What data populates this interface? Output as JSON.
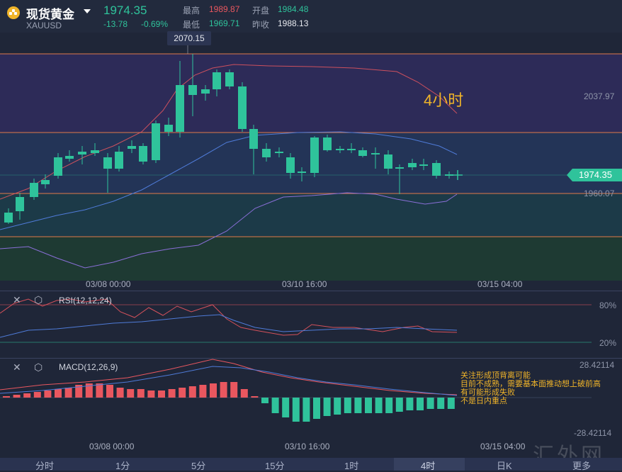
{
  "header": {
    "title": "现货黄金",
    "symbol": "XAUUSD",
    "last_price": "1974.35",
    "change": "-13.78",
    "change_pct": "-0.69%",
    "high_label": "最高",
    "high_value": "1989.87",
    "low_label": "最低",
    "low_value": "1969.71",
    "open_label": "开盘",
    "open_value": "1984.48",
    "prev_close_label": "昨收",
    "prev_close_value": "1988.13"
  },
  "main_chart": {
    "peak_tag": "2070.15",
    "timeframe_note": "4小时",
    "price_labels": [
      "2037.97",
      "1974.35",
      "1960.07"
    ],
    "time_labels": [
      "03/08 00:00",
      "03/10 16:00",
      "03/15 04:00"
    ]
  },
  "rsi": {
    "label": "RSI(12,12,24)",
    "levels": [
      "80%",
      "20%"
    ]
  },
  "macd": {
    "label": "MACD(12,26,9)",
    "levels": [
      "28.42114",
      "-28.42114"
    ],
    "annotation": [
      "关注形成顶背离可能",
      "目前不成熟，需要基本面推动想上破前高",
      "有可能形成失败",
      "不是日内重点"
    ],
    "time_labels": [
      "03/08 00:00",
      "03/10 16:00",
      "03/15 04:00"
    ]
  },
  "tabs": [
    "分时",
    "1分",
    "5分",
    "15分",
    "1时",
    "4时",
    "日K",
    "更多"
  ],
  "active_tab": "4时",
  "watermark": "汇外网",
  "colors": {
    "up": "#e9575f",
    "down": "#2fc39b",
    "accent": "#f0b429"
  }
}
